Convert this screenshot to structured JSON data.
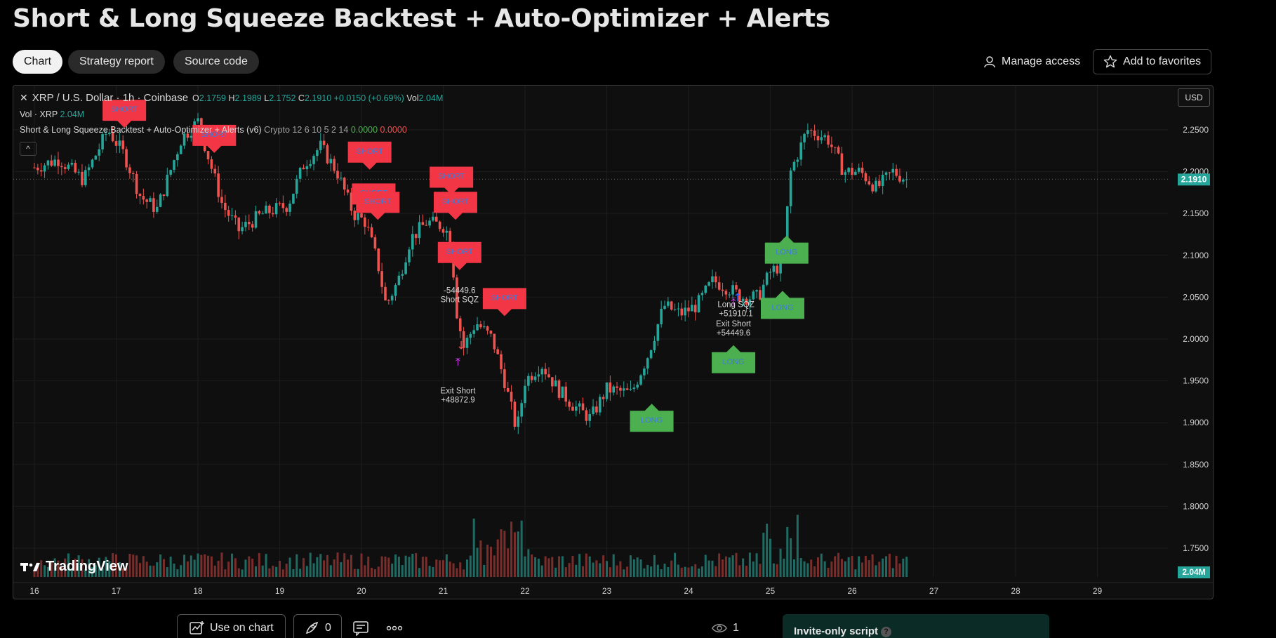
{
  "page": {
    "title": "Short & Long Squeeze Backtest + Auto-Optimizer + Alerts"
  },
  "tabs": [
    {
      "label": "Chart",
      "active": true
    },
    {
      "label": "Strategy report",
      "active": false
    },
    {
      "label": "Source code",
      "active": false
    }
  ],
  "top_actions": {
    "manage_access": "Manage access",
    "add_to_favorites": "Add to favorites"
  },
  "chart_header": {
    "symbol": "XRP / U.S. Dollar · 1h · Coinbase",
    "open_label": "O",
    "open": "2.1759",
    "high_label": "H",
    "high": "2.1989",
    "low_label": "L",
    "low": "2.1752",
    "close_label": "C",
    "close": "2.1910",
    "change": "+0.0150 (+0.69%)",
    "vol_label": "Vol",
    "vol": "2.04M",
    "vol_row_label": "Vol · XRP",
    "vol_row_value": "2.04M",
    "indicator_name": "Short & Long Squeeze Backtest + Auto-Optimizer + Alerts (v6)",
    "indicator_params": "Crypto 12 6 10 5 2 14",
    "indicator_val1": "0.0000",
    "indicator_val2": "0.0000",
    "currency": "USD",
    "brand": "TradingView"
  },
  "colors": {
    "up": "#26a69a",
    "down": "#ef5350",
    "short_label": "#f23645",
    "long_label": "#4caf50",
    "price_tag": "#26a69a",
    "exit_arrow": "#e040fb"
  },
  "chart_data": {
    "type": "candlestick",
    "title": "",
    "symbol": "XRP / U.S. Dollar · 1h · Coinbase",
    "y_axis": {
      "ticks": [
        "2.2500",
        "2.2000",
        "2.1500",
        "2.1000",
        "2.0500",
        "2.0000",
        "1.9500",
        "1.9000",
        "1.8500",
        "1.8000",
        "1.7500"
      ],
      "range": [
        1.71,
        2.29
      ]
    },
    "x_axis": {
      "ticks": [
        "16",
        "17",
        "18",
        "19",
        "20",
        "21",
        "22",
        "23",
        "24",
        "25",
        "26",
        "27",
        "28",
        "29"
      ]
    },
    "last_price": "2.1910",
    "last_volume": "2.04M",
    "close_path": [
      [
        16.0,
        2.205
      ],
      [
        16.3,
        2.215
      ],
      [
        16.6,
        2.19
      ],
      [
        16.9,
        2.25
      ],
      [
        17.1,
        2.22
      ],
      [
        17.3,
        2.17
      ],
      [
        17.5,
        2.155
      ],
      [
        17.8,
        2.24
      ],
      [
        18.0,
        2.26
      ],
      [
        18.15,
        2.21
      ],
      [
        18.3,
        2.16
      ],
      [
        18.5,
        2.13
      ],
      [
        18.8,
        2.15
      ],
      [
        19.1,
        2.16
      ],
      [
        19.3,
        2.21
      ],
      [
        19.5,
        2.23
      ],
      [
        19.7,
        2.2
      ],
      [
        19.9,
        2.15
      ],
      [
        20.05,
        2.14
      ],
      [
        20.2,
        2.09
      ],
      [
        20.3,
        2.04
      ],
      [
        20.45,
        2.07
      ],
      [
        20.6,
        2.12
      ],
      [
        20.8,
        2.14
      ],
      [
        21.0,
        2.135
      ],
      [
        21.1,
        2.12
      ],
      [
        21.15,
        2.04
      ],
      [
        21.25,
        1.99
      ],
      [
        21.4,
        2.02
      ],
      [
        21.6,
        2.0
      ],
      [
        21.75,
        1.95
      ],
      [
        21.9,
        1.89
      ],
      [
        22.0,
        1.95
      ],
      [
        22.2,
        1.97
      ],
      [
        22.4,
        1.94
      ],
      [
        22.6,
        1.92
      ],
      [
        22.8,
        1.905
      ],
      [
        23.0,
        1.94
      ],
      [
        23.3,
        1.935
      ],
      [
        23.5,
        1.98
      ],
      [
        23.7,
        2.04
      ],
      [
        23.9,
        2.03
      ],
      [
        24.1,
        2.04
      ],
      [
        24.3,
        2.07
      ],
      [
        24.5,
        2.06
      ],
      [
        24.65,
        2.05
      ],
      [
        24.85,
        2.05
      ],
      [
        25.0,
        2.08
      ],
      [
        25.15,
        2.09
      ],
      [
        25.25,
        2.2
      ],
      [
        25.45,
        2.25
      ],
      [
        25.7,
        2.24
      ],
      [
        25.9,
        2.2
      ],
      [
        26.1,
        2.2
      ],
      [
        26.3,
        2.18
      ],
      [
        26.5,
        2.2
      ],
      [
        26.68,
        2.19
      ]
    ],
    "annotations": [
      {
        "type": "SHORT",
        "x": 17.1,
        "y": 2.27
      },
      {
        "type": "SHORT",
        "x": 18.2,
        "y": 2.24
      },
      {
        "type": "SHORT",
        "x": 20.1,
        "y": 2.22
      },
      {
        "type": "SHORT",
        "x": 20.15,
        "y": 2.17
      },
      {
        "type": "SHORT",
        "x": 20.2,
        "y": 2.16
      },
      {
        "type": "SHORT",
        "x": 21.1,
        "y": 2.19
      },
      {
        "type": "SHORT",
        "x": 21.15,
        "y": 2.16
      },
      {
        "type": "SHORT",
        "x": 21.2,
        "y": 2.1
      },
      {
        "type": "SHORT",
        "x": 21.75,
        "y": 2.045
      },
      {
        "type": "LONG",
        "x": 23.55,
        "y": 1.905
      },
      {
        "type": "LONG",
        "x": 24.55,
        "y": 1.975
      },
      {
        "type": "LONG",
        "x": 25.15,
        "y": 2.04
      },
      {
        "type": "LONG",
        "x": 25.2,
        "y": 2.106
      }
    ],
    "trade_labels": [
      {
        "lines": [
          "-54449.6",
          "Short SQZ"
        ],
        "x": 21.2,
        "y": 2.055
      },
      {
        "lines": [
          "Exit Short",
          "+48872.9"
        ],
        "x": 21.18,
        "y": 1.935
      },
      {
        "lines": [
          "Long SQZ",
          "+51910.1"
        ],
        "x": 24.58,
        "y": 2.038
      },
      {
        "lines": [
          "Exit Short",
          "+54449.6"
        ],
        "x": 24.55,
        "y": 2.015
      }
    ]
  },
  "bottom": {
    "use_on_chart": "Use on chart",
    "boost_count": "0",
    "views": "1",
    "invite_only": "Invite-only script"
  }
}
